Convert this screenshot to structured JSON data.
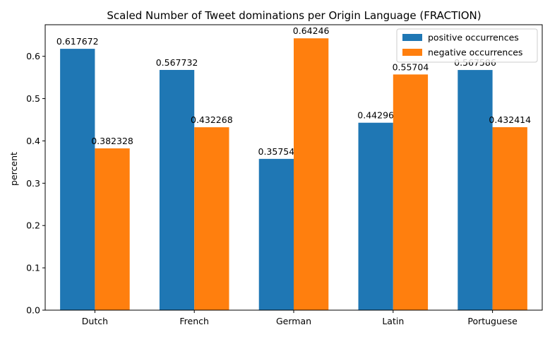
{
  "chart_data": {
    "type": "bar",
    "title": "Scaled Number of Tweet dominations per Origin Language (FRACTION)",
    "xlabel": "",
    "ylabel": "percent",
    "categories": [
      "Dutch",
      "French",
      "German",
      "Latin",
      "Portuguese"
    ],
    "series": [
      {
        "name": "positive occurrences",
        "color": "#1f77b4",
        "values": [
          0.617672,
          0.567732,
          0.35754,
          0.44296,
          0.567586
        ],
        "labels": [
          "0.617672",
          "0.567732",
          "0.35754",
          "0.44296",
          "0.567586"
        ]
      },
      {
        "name": "negative occurrences",
        "color": "#ff7f0e",
        "values": [
          0.382328,
          0.432268,
          0.64246,
          0.55704,
          0.432414
        ],
        "labels": [
          "0.382328",
          "0.432268",
          "0.64246",
          "0.55704",
          "0.432414"
        ]
      }
    ],
    "ylim": [
      0,
      0.674583
    ],
    "yticks": [
      0.0,
      0.1,
      0.2,
      0.3,
      0.4,
      0.5,
      0.6
    ],
    "ytick_labels": [
      "0.0",
      "0.1",
      "0.2",
      "0.3",
      "0.4",
      "0.5",
      "0.6"
    ],
    "grid": false,
    "legend_position": "top-right"
  }
}
